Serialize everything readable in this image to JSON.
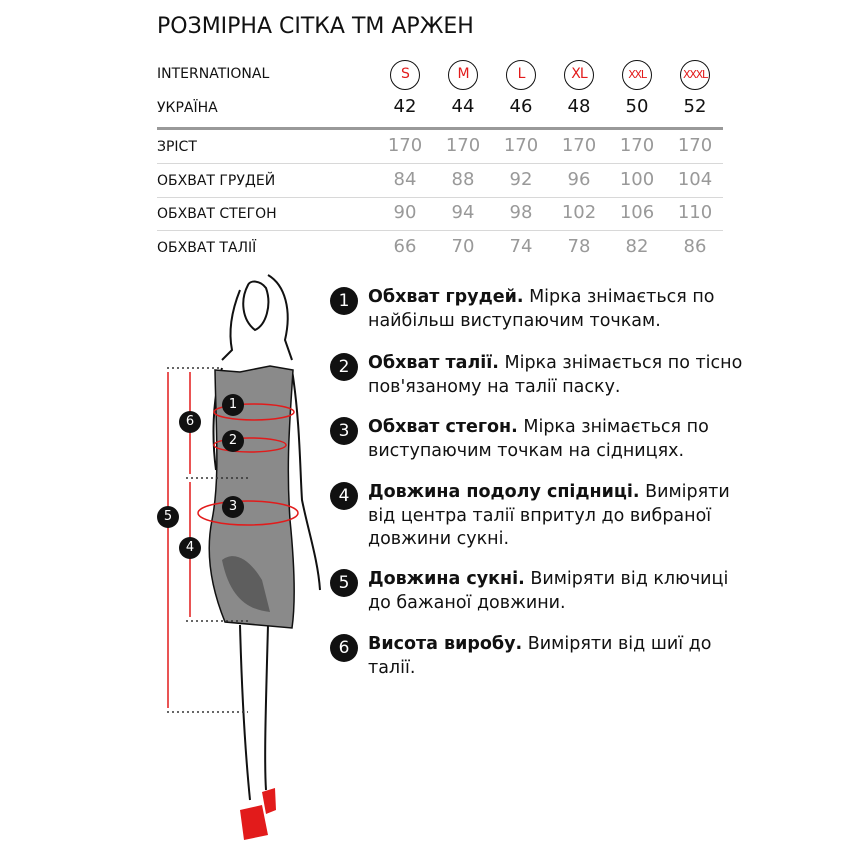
{
  "title": "РОЗМІРНА СІТКА ТМ АРЖЕН",
  "table": {
    "international": {
      "label": "INTERNATIONAL",
      "values": [
        "S",
        "M",
        "L",
        "XL",
        "XXL",
        "XXXL"
      ]
    },
    "ukraine": {
      "label": "УКРАЇНА",
      "values": [
        "42",
        "44",
        "46",
        "48",
        "50",
        "52"
      ]
    },
    "rows": [
      {
        "label": "ЗРІСТ",
        "values": [
          "170",
          "170",
          "170",
          "170",
          "170",
          "170"
        ]
      },
      {
        "label": "ОБХВАТ ГРУДЕЙ",
        "values": [
          "84",
          "88",
          "92",
          "96",
          "100",
          "104"
        ]
      },
      {
        "label": "ОБХВАТ СТЕГОН",
        "values": [
          "90",
          "94",
          "98",
          "102",
          "106",
          "110"
        ]
      },
      {
        "label": "ОБХВАТ ТАЛІЇ",
        "values": [
          "66",
          "70",
          "74",
          "78",
          "82",
          "86"
        ]
      }
    ]
  },
  "legend": [
    {
      "num": "1",
      "bold": "Обхват грудей.",
      "text": " Мірка знімається по найбільш виступаючим точкам."
    },
    {
      "num": "2",
      "bold": "Обхват талії.",
      "text": " Мірка знімається по тісно пов'язаному на талії паску."
    },
    {
      "num": "3",
      "bold": "Обхват стегон.",
      "text": " Мірка знімається по виступаючим точкам на сідницях."
    },
    {
      "num": "4",
      "bold": "Довжина подолу спідниці.",
      "text": " Виміряти від центра талії впритул до вибраної довжини сукні."
    },
    {
      "num": "5",
      "bold": "Довжина сукні.",
      "text": " Виміряти від ключиці до бажаної довжини."
    },
    {
      "num": "6",
      "bold": "Висота виробу.",
      "text": " Виміряти від шиї до талії."
    }
  ],
  "figure_markers": [
    "1",
    "2",
    "3",
    "4",
    "5",
    "6"
  ],
  "colors": {
    "accent": "#e21b1b",
    "dress": "#8a8a8a",
    "text": "#111111",
    "muted": "#999999"
  }
}
